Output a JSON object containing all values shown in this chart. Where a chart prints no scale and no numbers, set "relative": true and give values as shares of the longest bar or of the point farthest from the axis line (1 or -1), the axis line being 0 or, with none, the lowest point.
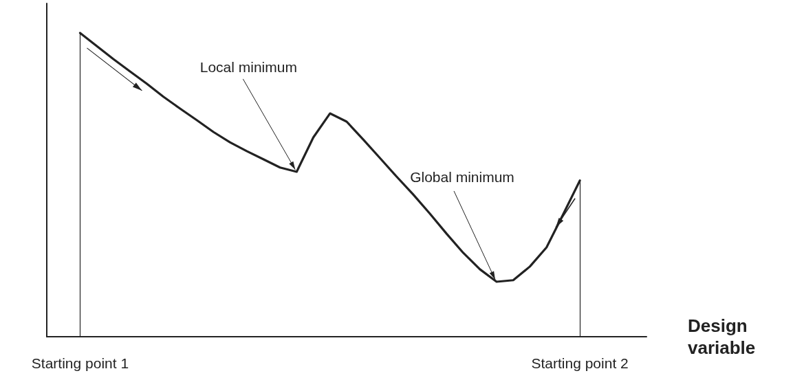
{
  "chart_data": {
    "type": "line",
    "relative": true,
    "xlabel": "Design variable",
    "categories": [
      null,
      null,
      "Starting point 1",
      null,
      null,
      null,
      null,
      null,
      null,
      null,
      null,
      null,
      null,
      null,
      null,
      null,
      null,
      null,
      null,
      null,
      null,
      null,
      null,
      null,
      null,
      null,
      null,
      null,
      null,
      null,
      null,
      null,
      "Starting point 2",
      null,
      null,
      null,
      null
    ],
    "series": [
      {
        "color": "#222222",
        "values": [
          null,
          null,
          1.0,
          0.957,
          0.914,
          0.873,
          0.833,
          0.79,
          0.751,
          0.713,
          0.674,
          0.64,
          0.611,
          0.584,
          0.557,
          0.543,
          0.656,
          0.735,
          0.708,
          0.649,
          0.588,
          0.527,
          0.468,
          0.405,
          0.339,
          0.276,
          0.222,
          0.181,
          0.186,
          0.231,
          0.294,
          0.403,
          0.514,
          null,
          null,
          null,
          null
        ]
      }
    ],
    "marker": "none",
    "line_style": "solid",
    "grid": false,
    "annotations": [
      "Local minimum",
      "Global minimum"
    ],
    "ref_lines": [
      {
        "axis": "x",
        "value": "Starting point 1",
        "color": "#222222"
      },
      {
        "axis": "x",
        "value": "Starting point 2",
        "color": "#222222"
      }
    ]
  }
}
